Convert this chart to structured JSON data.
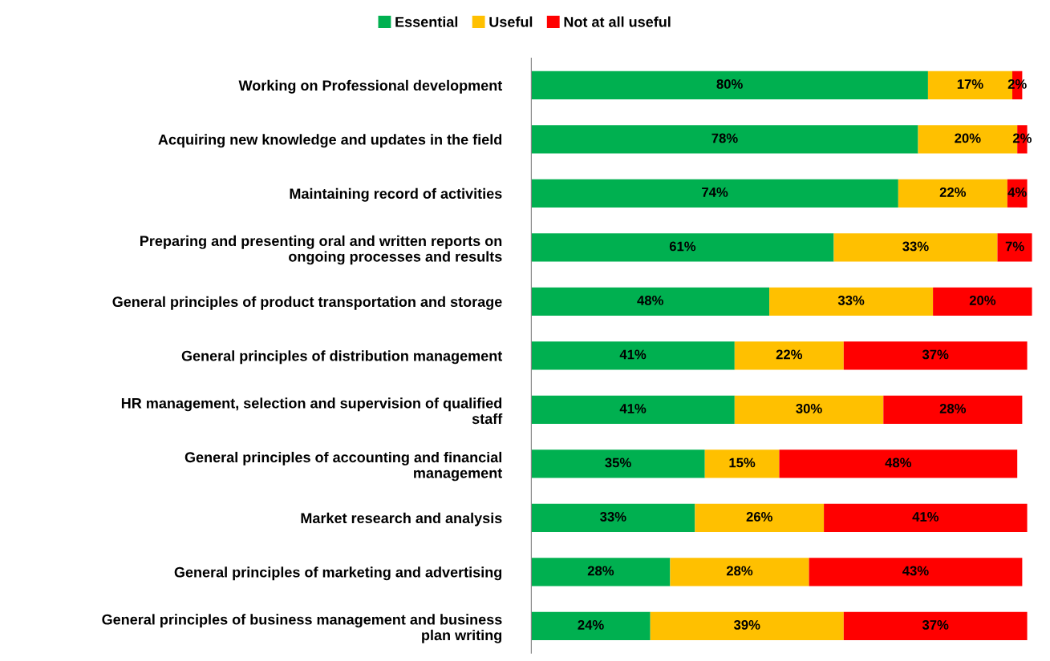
{
  "chart_data": {
    "type": "bar",
    "orientation": "horizontal",
    "stacked": true,
    "tick_labels": "y",
    "legend": "top",
    "categories": [
      "Working on Professional development",
      "Acquiring new knowledge and updates in the field",
      "Maintaining record of activities",
      "Preparing and presenting oral and written reports on ongoing processes and results",
      "General principles of product transportation and storage",
      "General principles of distribution management",
      "HR management, selection and supervision of qualified staff",
      "General principles of accounting and financial management",
      "Market research and analysis",
      "General principles of marketing and advertising",
      "General principles of business management and business plan writing"
    ],
    "series": [
      {
        "name": "Essential",
        "color": "#00b050",
        "values": [
          80,
          78,
          74,
          61,
          48,
          41,
          41,
          35,
          33,
          28,
          24
        ],
        "value_labels": [
          "80%",
          "78%",
          "74%",
          "61%",
          "48%",
          "41%",
          "41%",
          "35%",
          "33%",
          "28%",
          "24%"
        ]
      },
      {
        "name": "Useful",
        "color": "#ffc000",
        "values": [
          17,
          20,
          22,
          33,
          33,
          22,
          30,
          15,
          26,
          28,
          39
        ],
        "value_labels": [
          "17%",
          "20%",
          "22%",
          "33%",
          "33%",
          "22%",
          "30%",
          "15%",
          "26%",
          "28%",
          "39%"
        ]
      },
      {
        "name": "Not at all useful",
        "color": "#ff0000",
        "values": [
          2,
          2,
          4,
          7,
          20,
          37,
          28,
          48,
          41,
          43,
          37
        ],
        "value_labels": [
          "2%",
          "2%",
          "4%",
          "7%",
          "20%",
          "37%",
          "28%",
          "48%",
          "41%",
          "43%",
          "37%"
        ]
      }
    ]
  }
}
